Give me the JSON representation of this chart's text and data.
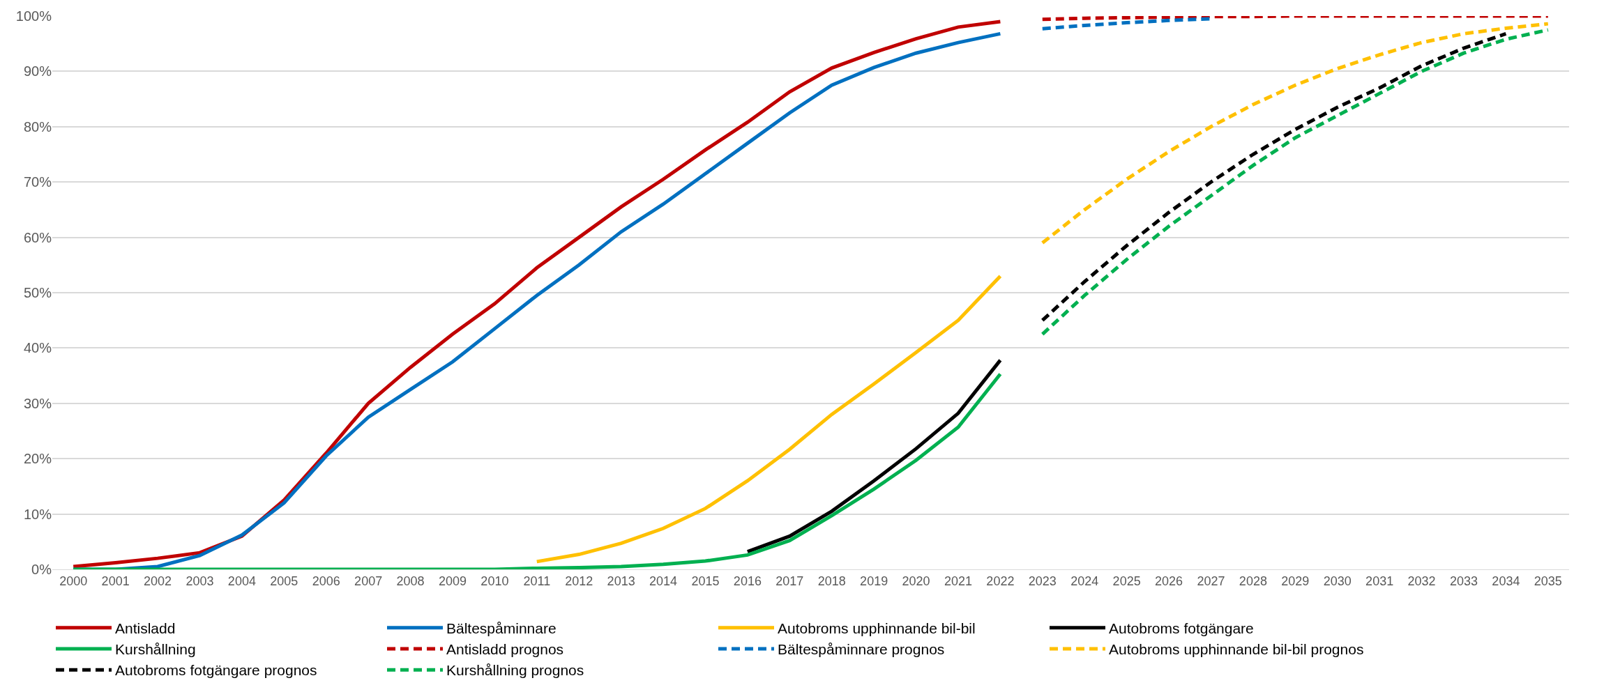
{
  "chart_data": {
    "type": "line",
    "xlim": [
      1999.5,
      2035.5
    ],
    "ylim": [
      0,
      100
    ],
    "xticks": [
      2000,
      2001,
      2002,
      2003,
      2004,
      2005,
      2006,
      2007,
      2008,
      2009,
      2010,
      2011,
      2012,
      2013,
      2014,
      2015,
      2016,
      2017,
      2018,
      2019,
      2020,
      2021,
      2022,
      2023,
      2024,
      2025,
      2026,
      2027,
      2028,
      2029,
      2030,
      2031,
      2032,
      2033,
      2034,
      2035
    ],
    "yticks": [
      {
        "value": 0,
        "label": "0%"
      },
      {
        "value": 10,
        "label": "10%"
      },
      {
        "value": 20,
        "label": "20%"
      },
      {
        "value": 30,
        "label": "30%"
      },
      {
        "value": 40,
        "label": "40%"
      },
      {
        "value": 50,
        "label": "50%"
      },
      {
        "value": 60,
        "label": "60%"
      },
      {
        "value": 70,
        "label": "70%"
      },
      {
        "value": 80,
        "label": "80%"
      },
      {
        "value": 90,
        "label": "90%"
      },
      {
        "value": 100,
        "label": "100%"
      }
    ],
    "grid": "y",
    "legend": "bottom",
    "marker": "none",
    "series": [
      {
        "name": "Antisladd",
        "color": "#c00000",
        "line_style": "solid",
        "x": [
          2000,
          2001,
          2002,
          2003,
          2004,
          2005,
          2006,
          2007,
          2008,
          2009,
          2010,
          2011,
          2012,
          2013,
          2014,
          2015,
          2016,
          2017,
          2018,
          2019,
          2020,
          2021,
          2022
        ],
        "values": [
          0.5,
          1.2,
          2,
          3,
          6,
          12.5,
          21,
          30,
          36.5,
          42.5,
          48,
          54.5,
          60,
          65.5,
          70.5,
          75.8,
          80.8,
          86.3,
          90.6,
          93.4,
          95.9,
          98,
          99
        ]
      },
      {
        "name": "Bältespåminnare",
        "color": "#0070c0",
        "line_style": "solid",
        "x": [
          2000,
          2001,
          2002,
          2003,
          2004,
          2005,
          2006,
          2007,
          2008,
          2009,
          2010,
          2011,
          2012,
          2013,
          2014,
          2015,
          2016,
          2017,
          2018,
          2019,
          2020,
          2021,
          2022
        ],
        "values": [
          0,
          0,
          0.5,
          2.5,
          6.2,
          12,
          20.5,
          27.5,
          32.5,
          37.5,
          43.5,
          49.5,
          55,
          61,
          66,
          71.5,
          77,
          82.5,
          87.5,
          90.7,
          93.3,
          95.2,
          96.8
        ]
      },
      {
        "name": "Autobroms upphinnande bil-bil",
        "color": "#ffc000",
        "line_style": "solid",
        "x": [
          2011,
          2012,
          2013,
          2014,
          2015,
          2016,
          2017,
          2018,
          2019,
          2020,
          2021,
          2022
        ],
        "values": [
          1.4,
          2.7,
          4.7,
          7.4,
          11,
          16,
          21.7,
          28,
          33.5,
          39.2,
          45,
          53
        ]
      },
      {
        "name": "Autobroms fotgängare",
        "color": "#000000",
        "line_style": "solid",
        "x": [
          2016,
          2017,
          2018,
          2019,
          2020,
          2021,
          2022
        ],
        "values": [
          3.2,
          6,
          10.5,
          16,
          21.8,
          28.2,
          37.8
        ]
      },
      {
        "name": "Kurshållning",
        "color": "#00b050",
        "line_style": "solid",
        "x": [
          2000,
          2001,
          2002,
          2003,
          2004,
          2005,
          2006,
          2007,
          2008,
          2009,
          2010,
          2011,
          2012,
          2013,
          2014,
          2015,
          2016,
          2017,
          2018,
          2019,
          2020,
          2021,
          2022
        ],
        "values": [
          0,
          0,
          0,
          0,
          0,
          0,
          0,
          0,
          0,
          0,
          0,
          0.2,
          0.3,
          0.5,
          0.9,
          1.5,
          2.6,
          5.2,
          9.7,
          14.5,
          19.7,
          25.7,
          35.3
        ]
      },
      {
        "name": "Antisladd prognos",
        "color": "#c00000",
        "line_style": "dashed",
        "x": [
          2023,
          2024,
          2025,
          2026,
          2027,
          2028,
          2029,
          2030,
          2031,
          2032,
          2033,
          2034,
          2035
        ],
        "values": [
          99.4,
          99.6,
          99.7,
          99.8,
          99.9,
          99.9,
          100,
          100,
          100,
          100,
          100,
          100,
          100
        ]
      },
      {
        "name": "Bältespåminnare prognos",
        "color": "#0070c0",
        "line_style": "dashed",
        "x": [
          2023,
          2024,
          2025,
          2026,
          2027
        ],
        "values": [
          97.7,
          98.3,
          98.8,
          99.2,
          99.5
        ]
      },
      {
        "name": "Autobroms upphinnande bil-bil prognos",
        "color": "#ffc000",
        "line_style": "dashed",
        "x": [
          2023,
          2024,
          2025,
          2026,
          2027,
          2028,
          2029,
          2030,
          2031,
          2032,
          2033,
          2034,
          2035
        ],
        "values": [
          59,
          65,
          70.5,
          75.5,
          80,
          84,
          87.5,
          90.5,
          93,
          95.2,
          96.8,
          97.8,
          98.6
        ]
      },
      {
        "name": "Autobroms fotgängare prognos",
        "color": "#000000",
        "line_style": "dashed",
        "x": [
          2023,
          2024,
          2025,
          2026,
          2027,
          2028,
          2029,
          2030,
          2031,
          2032,
          2033,
          2034
        ],
        "values": [
          45,
          52,
          58.5,
          64.5,
          70,
          75,
          79.5,
          83.5,
          87,
          91,
          94.2,
          96.8
        ]
      },
      {
        "name": "Kurshållning prognos",
        "color": "#00b050",
        "line_style": "dashed",
        "x": [
          2023,
          2024,
          2025,
          2026,
          2027,
          2028,
          2029,
          2030,
          2031,
          2032,
          2033,
          2034,
          2035
        ],
        "values": [
          42.5,
          49.5,
          56,
          62,
          67.5,
          73,
          78,
          82,
          86,
          90,
          93.3,
          95.8,
          97.5
        ]
      }
    ]
  }
}
